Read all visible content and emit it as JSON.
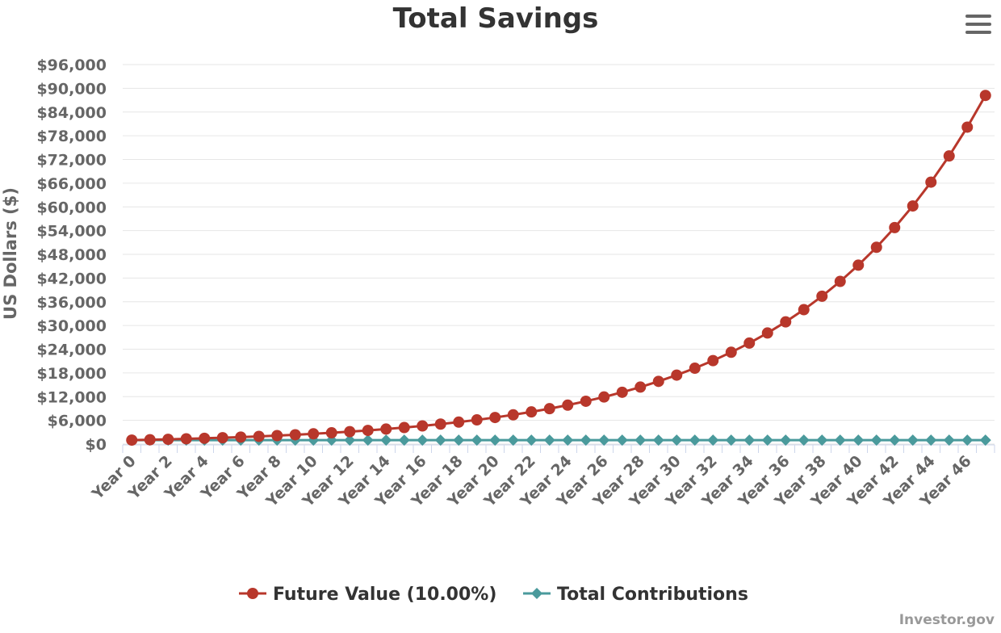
{
  "chart_data": {
    "type": "line",
    "title": "Total Savings",
    "ylabel": "US Dollars ($)",
    "xlabel": "",
    "ylim": [
      0,
      96000
    ],
    "y_ticks": [
      "$0",
      "$6,000",
      "$12,000",
      "$18,000",
      "$24,000",
      "$30,000",
      "$36,000",
      "$42,000",
      "$48,000",
      "$54,000",
      "$60,000",
      "$66,000",
      "$72,000",
      "$78,000",
      "$84,000",
      "$90,000",
      "$96,000"
    ],
    "y_tick_values": [
      0,
      6000,
      12000,
      18000,
      24000,
      30000,
      36000,
      42000,
      48000,
      54000,
      60000,
      66000,
      72000,
      78000,
      84000,
      90000,
      96000
    ],
    "categories": [
      "Year 0",
      "Year 1",
      "Year 2",
      "Year 3",
      "Year 4",
      "Year 5",
      "Year 6",
      "Year 7",
      "Year 8",
      "Year 9",
      "Year 10",
      "Year 11",
      "Year 12",
      "Year 13",
      "Year 14",
      "Year 15",
      "Year 16",
      "Year 17",
      "Year 18",
      "Year 19",
      "Year 20",
      "Year 21",
      "Year 22",
      "Year 23",
      "Year 24",
      "Year 25",
      "Year 26",
      "Year 27",
      "Year 28",
      "Year 29",
      "Year 30",
      "Year 31",
      "Year 32",
      "Year 33",
      "Year 34",
      "Year 35",
      "Year 36",
      "Year 37",
      "Year 38",
      "Year 39",
      "Year 40",
      "Year 41",
      "Year 42",
      "Year 43",
      "Year 44",
      "Year 45",
      "Year 46",
      "Year 47"
    ],
    "x_tick_labels": [
      "Year 0",
      "Year 2",
      "Year 4",
      "Year 6",
      "Year 8",
      "Year 10",
      "Year 12",
      "Year 14",
      "Year 16",
      "Year 18",
      "Year 20",
      "Year 22",
      "Year 24",
      "Year 26",
      "Year 28",
      "Year 30",
      "Year 32",
      "Year 34",
      "Year 36",
      "Year 38",
      "Year 40",
      "Year 42",
      "Year 44",
      "Year 46"
    ],
    "series": [
      {
        "name": "Future Value (10.00%)",
        "color": "#b8372b",
        "marker": "circle",
        "values": [
          1000,
          1100,
          1210,
          1331,
          1464,
          1611,
          1772,
          1949,
          2144,
          2358,
          2594,
          2853,
          3138,
          3452,
          3797,
          4177,
          4595,
          5054,
          5560,
          6116,
          6727,
          7400,
          8140,
          8954,
          9850,
          10835,
          11918,
          13110,
          14421,
          15863,
          17449,
          19194,
          21114,
          23225,
          25548,
          28102,
          30913,
          34004,
          37404,
          41145,
          45259,
          49785,
          54764,
          60240,
          66264,
          72890,
          80180,
          88197
        ]
      },
      {
        "name": "Total Contributions",
        "color": "#4a9a9c",
        "marker": "diamond",
        "values": [
          1000,
          1000,
          1000,
          1000,
          1000,
          1000,
          1000,
          1000,
          1000,
          1000,
          1000,
          1000,
          1000,
          1000,
          1000,
          1000,
          1000,
          1000,
          1000,
          1000,
          1000,
          1000,
          1000,
          1000,
          1000,
          1000,
          1000,
          1000,
          1000,
          1000,
          1000,
          1000,
          1000,
          1000,
          1000,
          1000,
          1000,
          1000,
          1000,
          1000,
          1000,
          1000,
          1000,
          1000,
          1000,
          1000,
          1000,
          1000
        ]
      }
    ],
    "grid": true,
    "legend": "bottom-center"
  },
  "menu": {
    "icon": "hamburger-menu-icon"
  },
  "credit": "Investor.gov",
  "colors": {
    "text": "#333333",
    "axis_text": "#666666",
    "grid": "#e6e6e6",
    "credit": "#999999"
  }
}
